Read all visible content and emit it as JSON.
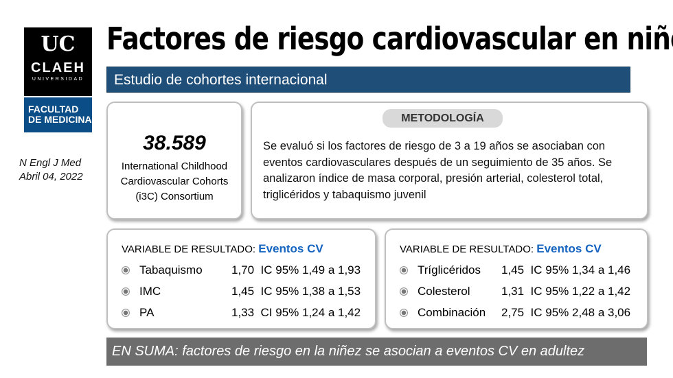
{
  "logo": {
    "mark": "UC",
    "name": "CLAEH",
    "sub": "UNIVERSIDAD",
    "faculty_line1": "FACULTAD",
    "faculty_line2": "DE MEDICINA"
  },
  "citation": {
    "journal": "N Engl J Med",
    "date": "Abril 04, 2022"
  },
  "title": "Factores de riesgo cardiovascular en niños",
  "subtitle": "Estudio de cohortes internacional",
  "cohort": {
    "number": "38.589",
    "line1": "International Childhood",
    "line2": "Cardiovascular Cohorts",
    "line3": "(i3C) Consortium"
  },
  "methodology": {
    "label": "METODOLOGÍA",
    "text": "Se evaluó si los factores de riesgo de 3 a 19 años se asociaban con eventos cardiovasculares después de un seguimiento de 35 años. Se analizaron índice de masa corporal, presión arterial,  colesterol total, triglicéridos y tabaquismo juvenil"
  },
  "results": [
    {
      "header": "VARIABLE DE RESULTADO:",
      "outcome": "Eventos CV",
      "rows": [
        {
          "label": "Tabaquismo",
          "value": "1,70  IC 95% 1,49 a 1,93"
        },
        {
          "label": "IMC",
          "value": "1,45  IC 95% 1,38 a 1,53"
        },
        {
          "label": "PA",
          "value": "1,33  CI 95% 1,24 a 1,42"
        }
      ]
    },
    {
      "header": "VARIABLE DE RESULTADO:",
      "outcome": "Eventos CV",
      "rows": [
        {
          "label": "Tríglicéridos",
          "value": "1,45  IC 95% 1,34 a 1,46"
        },
        {
          "label": "Colesterol",
          "value": "1,31  IC 95% 1,22 a 1,42"
        },
        {
          "label": "Combinación",
          "value": "2,75  IC 95% 2,48 a 3,06"
        }
      ]
    }
  ],
  "summary": "EN SUMA: factores de riesgo en la niñez se asocian a eventos CV en adultez"
}
